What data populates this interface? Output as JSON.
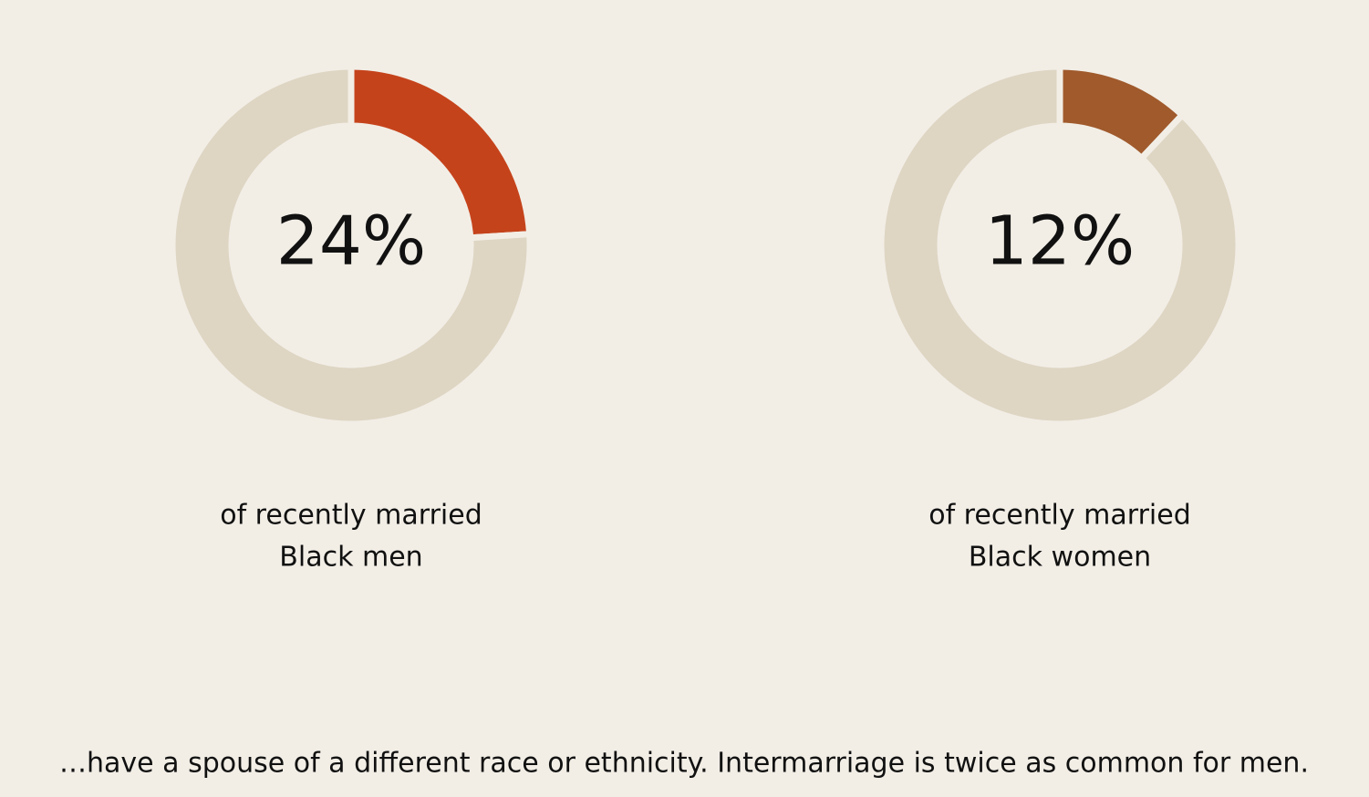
{
  "chart_data": [
    {
      "type": "donut",
      "values": [
        24,
        76
      ],
      "value_labels": [
        "24%",
        null
      ],
      "colors": [
        "#c5431b",
        "#ded5c3"
      ],
      "caption": [
        "of recently married",
        "Black men"
      ]
    },
    {
      "type": "donut",
      "values": [
        12,
        88
      ],
      "value_labels": [
        "12%",
        null
      ],
      "colors": [
        "#a05a2c",
        "#ded5c3"
      ],
      "caption": [
        "of recently married",
        "Black women"
      ]
    }
  ],
  "footer": "…have a spouse of a different race or ethnicity. Intermarriage is twice as common for men."
}
